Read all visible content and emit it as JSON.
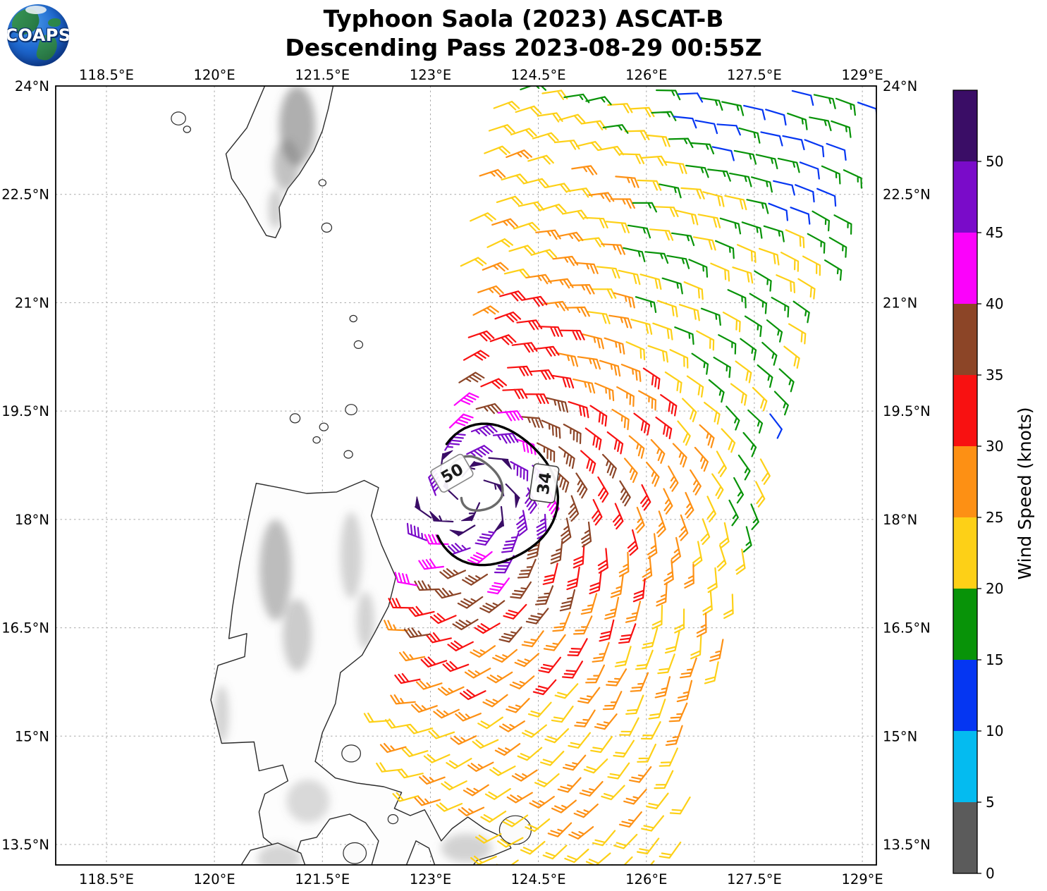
{
  "title": {
    "line1": "Typhoon Saola (2023) ASCAT-B",
    "line2": "Descending Pass 2023-08-29 00:55Z"
  },
  "logo": {
    "text": "COAPS"
  },
  "axes": {
    "lon_min": 117.795,
    "lon_max": 129.195,
    "lat_min": 13.217,
    "lat_max": 24.0,
    "lon_ticks": [
      {
        "deg": 118.5,
        "label": "118.5°E"
      },
      {
        "deg": 120.0,
        "label": "120°E"
      },
      {
        "deg": 121.5,
        "label": "121.5°E"
      },
      {
        "deg": 123.0,
        "label": "123°E"
      },
      {
        "deg": 124.5,
        "label": "124.5°E"
      },
      {
        "deg": 126.0,
        "label": "126°E"
      },
      {
        "deg": 127.5,
        "label": "127.5°E"
      },
      {
        "deg": 129.0,
        "label": "129°E"
      }
    ],
    "lat_ticks": [
      {
        "deg": 24.0,
        "label": "24°N"
      },
      {
        "deg": 22.5,
        "label": "22.5°N"
      },
      {
        "deg": 21.0,
        "label": "21°N"
      },
      {
        "deg": 19.5,
        "label": "19.5°N"
      },
      {
        "deg": 18.0,
        "label": "18°N"
      },
      {
        "deg": 16.5,
        "label": "16.5°N"
      },
      {
        "deg": 15.0,
        "label": "15°N"
      },
      {
        "deg": 13.5,
        "label": "13.5°N"
      }
    ]
  },
  "colorbar": {
    "title": "Wind Speed (knots)",
    "tick_labels": [
      "0",
      "5",
      "10",
      "15",
      "20",
      "25",
      "30",
      "35",
      "40",
      "45",
      "50"
    ],
    "segments": [
      {
        "min": 0,
        "max": 5,
        "color": "#5b5b5b"
      },
      {
        "min": 5,
        "max": 10,
        "color": "#04bbf0"
      },
      {
        "min": 10,
        "max": 15,
        "color": "#0536f2"
      },
      {
        "min": 15,
        "max": 20,
        "color": "#089308"
      },
      {
        "min": 20,
        "max": 25,
        "color": "#fdd017"
      },
      {
        "min": 25,
        "max": 30,
        "color": "#fd9014"
      },
      {
        "min": 30,
        "max": 35,
        "color": "#f81111"
      },
      {
        "min": 35,
        "max": 40,
        "color": "#8c4527"
      },
      {
        "min": 40,
        "max": 45,
        "color": "#fb02fb"
      },
      {
        "min": 45,
        "max": 50,
        "color": "#7a0bc9"
      },
      {
        "min": 50,
        "max": 55,
        "color": "#3a0d66"
      }
    ]
  },
  "chart_data": {
    "type": "wind_barb_map",
    "storm": "Typhoon Saola (2023)",
    "satellite": "ASCAT-B",
    "pass": "Descending",
    "datetime_utc": "2023-08-29 00:55Z",
    "units": "knots",
    "storm_center": {
      "lon": 123.55,
      "lat": 18.35
    },
    "contours": [
      {
        "label": "34",
        "kt": 34,
        "color": "#000000",
        "width": 3.4,
        "center": {
          "lon": 123.85,
          "lat": 18.33
        },
        "r_deg": [
          0.88,
          0.97
        ],
        "arc": [
          226,
          507
        ],
        "wobble": 0.05,
        "spiral_to": 0,
        "label_pos": {
          "lon": 124.58,
          "lat": 18.5
        },
        "label_rot": -82,
        "box_stroke": "#444444"
      },
      {
        "label": "50",
        "kt": 50,
        "color": "#6a6a6a",
        "width": 3.4,
        "center": {
          "lon": 123.58,
          "lat": 18.42
        },
        "r_deg": [
          0.4,
          0.44
        ],
        "arc": [
          218,
          503
        ],
        "wobble": 0.06,
        "spiral_to": 0.45,
        "label_pos": {
          "lon": 123.3,
          "lat": 18.64
        },
        "label_rot": -30,
        "box_stroke": "#888888"
      }
    ],
    "swath": {
      "lat_min": 13.26,
      "lat_max": 23.96,
      "center_lon_base": 124.2,
      "center_lon_slope": 0.21,
      "half_width_base": 2.2,
      "half_width_slope": 0.04,
      "lat_ref": 13.2,
      "row_tilt": -0.17,
      "col_spacing_deg": 0.315,
      "row_spacing_deg": 0.312
    },
    "wind_model": {
      "inflow": 0.45,
      "noise_kt": 2.6,
      "rings": [
        {
          "r": 0.45,
          "kt": 52
        },
        {
          "r": 0.75,
          "kt": 47
        },
        {
          "r": 1.05,
          "kt": 42
        },
        {
          "r": 1.45,
          "kt": 37
        },
        {
          "r": 2.05,
          "kt": 32
        },
        {
          "r": 2.9,
          "kt": 27
        },
        {
          "r": 5.2,
          "kt": 22
        },
        {
          "r": 99,
          "kt": 17
        }
      ],
      "sectors": [
        {
          "brg": [
            335,
            28
          ],
          "r_min": 4.8,
          "kt": 19
        },
        {
          "brg": [
            28,
            100
          ],
          "r_min": 3.4,
          "kt": 17
        },
        {
          "brg": [
            100,
            260
          ],
          "r_min": 5.0,
          "kt": 20
        },
        {
          "brg": [
            72,
            100
          ],
          "r_min": 3.9,
          "kt": 12.5
        },
        {
          "brg": [
            25,
            100
          ],
          "r_min": 5.6,
          "kt": 12.5
        }
      ],
      "anomalies": [
        {
          "lon": 122.38,
          "lat": 16.35,
          "rad": 0.28,
          "kt": 12.5
        },
        {
          "lon": 122.55,
          "lat": 13.6,
          "rad": 0.3,
          "kt": 12.5
        },
        {
          "lon": 122.25,
          "lat": 14.35,
          "rad": 0.25,
          "kt": 12.5
        },
        {
          "lon": 125.15,
          "lat": 14.1,
          "rad": 0.45,
          "kt": 26
        }
      ]
    },
    "barb_style": {
      "length": 27,
      "feather": 14,
      "half": 7.5,
      "gap": 5.3,
      "width": 2.2
    }
  },
  "map": {
    "land": [
      {
        "name": "taiwan",
        "pts": [
          [
            120.72,
            24.05
          ],
          [
            120.45,
            23.42
          ],
          [
            120.16,
            23.06
          ],
          [
            120.24,
            22.72
          ],
          [
            120.44,
            22.42
          ],
          [
            120.62,
            22.1
          ],
          [
            120.72,
            21.93
          ],
          [
            120.85,
            21.9
          ],
          [
            120.92,
            22.05
          ],
          [
            120.9,
            22.32
          ],
          [
            121.02,
            22.58
          ],
          [
            121.18,
            22.78
          ],
          [
            121.38,
            23.1
          ],
          [
            121.5,
            23.38
          ],
          [
            121.58,
            23.68
          ],
          [
            121.66,
            24.05
          ]
        ]
      },
      {
        "name": "luzon",
        "pts": [
          [
            120.58,
            18.5
          ],
          [
            120.9,
            18.44
          ],
          [
            121.28,
            18.36
          ],
          [
            121.7,
            18.38
          ],
          [
            122.08,
            18.54
          ],
          [
            122.28,
            18.44
          ],
          [
            122.18,
            18.05
          ],
          [
            122.32,
            17.65
          ],
          [
            122.52,
            17.2
          ],
          [
            122.42,
            16.8
          ],
          [
            122.22,
            16.42
          ],
          [
            122.05,
            16.12
          ],
          [
            121.75,
            15.88
          ],
          [
            121.68,
            15.45
          ],
          [
            121.5,
            15.05
          ],
          [
            121.4,
            14.65
          ],
          [
            121.68,
            14.42
          ],
          [
            121.98,
            14.35
          ],
          [
            122.35,
            14.3
          ],
          [
            122.6,
            14.22
          ],
          [
            122.5,
            14.0
          ],
          [
            122.72,
            13.9
          ],
          [
            122.92,
            13.98
          ],
          [
            123.02,
            13.8
          ],
          [
            123.15,
            13.55
          ],
          [
            123.3,
            13.72
          ],
          [
            123.52,
            13.88
          ],
          [
            123.75,
            13.72
          ],
          [
            124.05,
            13.58
          ],
          [
            124.12,
            13.45
          ],
          [
            123.88,
            13.35
          ],
          [
            123.65,
            13.28
          ],
          [
            123.5,
            13.1
          ],
          [
            123.1,
            13.1
          ],
          [
            122.98,
            13.45
          ],
          [
            122.8,
            13.55
          ],
          [
            122.62,
            13.1
          ],
          [
            122.15,
            13.1
          ],
          [
            122.28,
            13.55
          ],
          [
            122.1,
            13.8
          ],
          [
            121.88,
            13.92
          ],
          [
            121.6,
            13.85
          ],
          [
            121.42,
            13.6
          ],
          [
            121.2,
            13.55
          ],
          [
            121.05,
            13.1
          ],
          [
            120.92,
            13.4
          ],
          [
            120.68,
            13.6
          ],
          [
            120.62,
            13.95
          ],
          [
            120.7,
            14.2
          ],
          [
            121.02,
            14.38
          ],
          [
            120.95,
            14.6
          ],
          [
            120.62,
            14.52
          ],
          [
            120.55,
            14.92
          ],
          [
            120.1,
            14.9
          ],
          [
            119.95,
            15.5
          ],
          [
            120.05,
            15.98
          ],
          [
            120.42,
            16.1
          ],
          [
            120.45,
            16.42
          ],
          [
            120.2,
            16.35
          ],
          [
            120.25,
            16.78
          ],
          [
            120.35,
            17.4
          ],
          [
            120.48,
            18.05
          ]
        ]
      },
      {
        "name": "mindoro",
        "pts": [
          [
            120.3,
            13.1
          ],
          [
            120.5,
            13.42
          ],
          [
            120.88,
            13.52
          ],
          [
            121.2,
            13.38
          ],
          [
            121.3,
            13.1
          ]
        ]
      }
    ],
    "islets": [
      [
        119.5,
        23.55,
        0.1
      ],
      [
        119.62,
        23.4,
        0.05
      ],
      [
        121.5,
        22.66,
        0.05
      ],
      [
        121.56,
        22.04,
        0.07
      ],
      [
        122.0,
        20.42,
        0.06
      ],
      [
        121.93,
        20.78,
        0.05
      ],
      [
        121.12,
        19.4,
        0.07
      ],
      [
        121.52,
        19.28,
        0.06
      ],
      [
        121.9,
        19.52,
        0.08
      ],
      [
        121.86,
        18.9,
        0.06
      ],
      [
        121.42,
        19.1,
        0.05
      ],
      [
        121.95,
        13.38,
        0.16
      ],
      [
        124.18,
        13.7,
        0.22
      ],
      [
        121.9,
        14.76,
        0.13
      ],
      [
        122.48,
        13.85,
        0.07
      ]
    ],
    "terrain": [
      {
        "lon": 121.15,
        "lat": 23.45,
        "rx": 0.25,
        "ry": 0.55,
        "op": 0.55
      },
      {
        "lon": 121.0,
        "lat": 22.9,
        "rx": 0.18,
        "ry": 0.35,
        "op": 0.42
      },
      {
        "lon": 120.85,
        "lat": 22.3,
        "rx": 0.1,
        "ry": 0.28,
        "op": 0.32
      },
      {
        "lon": 120.85,
        "lat": 17.3,
        "rx": 0.22,
        "ry": 0.7,
        "op": 0.45
      },
      {
        "lon": 121.15,
        "lat": 16.4,
        "rx": 0.2,
        "ry": 0.5,
        "op": 0.35
      },
      {
        "lon": 121.9,
        "lat": 17.5,
        "rx": 0.15,
        "ry": 0.6,
        "op": 0.3
      },
      {
        "lon": 122.1,
        "lat": 16.6,
        "rx": 0.12,
        "ry": 0.4,
        "op": 0.3
      },
      {
        "lon": 120.1,
        "lat": 15.3,
        "rx": 0.1,
        "ry": 0.4,
        "op": 0.3
      },
      {
        "lon": 121.3,
        "lat": 14.1,
        "rx": 0.3,
        "ry": 0.3,
        "op": 0.25
      },
      {
        "lon": 123.5,
        "lat": 13.45,
        "rx": 0.35,
        "ry": 0.2,
        "op": 0.3
      },
      {
        "lon": 120.9,
        "lat": 13.3,
        "rx": 0.3,
        "ry": 0.2,
        "op": 0.28
      }
    ]
  }
}
